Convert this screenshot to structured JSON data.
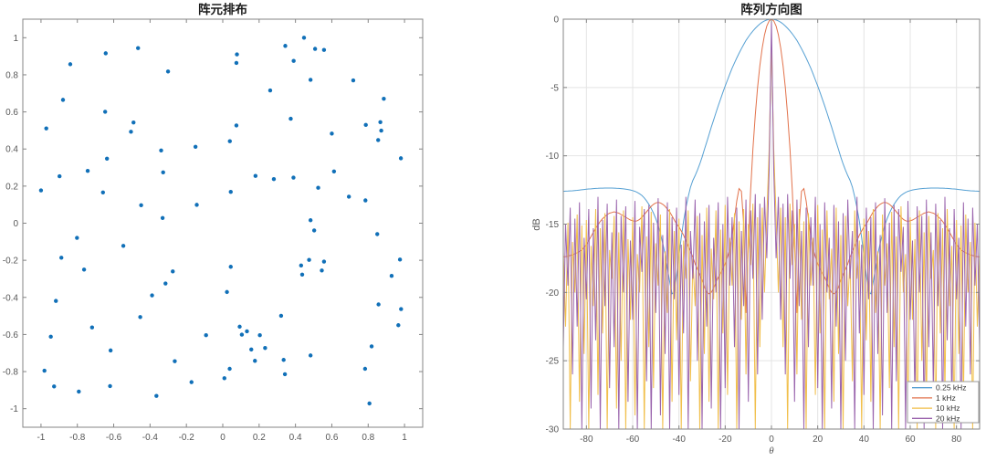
{
  "figure": {
    "background": "#ffffff"
  },
  "styles": {
    "axis_color": "#858585",
    "tick_label_color": "#575757",
    "grid_color": "#e4e4e4",
    "scatter_color": "#1170b8",
    "series_colors": [
      "#56a0d3",
      "#e2724b",
      "#f1bf4b",
      "#9a64ad"
    ]
  },
  "chart_data": [
    {
      "type": "scatter",
      "title": "阵元排布",
      "xlim": [
        -1.1,
        1.1
      ],
      "ylim": [
        -1.1,
        1.1
      ],
      "grid": false,
      "x_tick_values": [
        -1,
        -0.8,
        -0.6,
        -0.4,
        -0.2,
        0,
        0.2,
        0.4,
        0.6,
        0.8,
        1
      ],
      "x_tick_labels": [
        "-1",
        "-0.8",
        "-0.6",
        "-0.4",
        "-0.2",
        "0",
        "0.2",
        "0.4",
        "0.6",
        "0.8",
        "1"
      ],
      "y_tick_values": [
        -1,
        -0.8,
        -0.6,
        -0.4,
        -0.2,
        0,
        0.2,
        0.4,
        0.6,
        0.8,
        1
      ],
      "y_tick_labels": [
        "-1",
        "-0.8",
        "-0.6",
        "-0.4",
        "-0.2",
        "0",
        "0.2",
        "0.4",
        "0.6",
        "0.8",
        "1"
      ],
      "marker_color": "#1170b8",
      "points": [
        [
          0.447,
          1.0
        ],
        [
          0.344,
          0.956
        ],
        [
          0.508,
          0.94
        ],
        [
          0.557,
          0.934
        ],
        [
          0.078,
          0.91
        ],
        [
          -0.466,
          0.944
        ],
        [
          -0.644,
          0.916
        ],
        [
          0.075,
          0.864
        ],
        [
          0.39,
          0.875
        ],
        [
          -0.839,
          0.857
        ],
        [
          -0.301,
          0.818
        ],
        [
          0.483,
          0.773
        ],
        [
          0.718,
          0.77
        ],
        [
          0.261,
          0.716
        ],
        [
          0.886,
          0.671
        ],
        [
          -0.879,
          0.665
        ],
        [
          -0.647,
          0.601
        ],
        [
          0.374,
          0.563
        ],
        [
          -0.491,
          0.543
        ],
        [
          0.867,
          0.545
        ],
        [
          0.787,
          0.53
        ],
        [
          -0.971,
          0.511
        ],
        [
          0.075,
          0.527
        ],
        [
          0.872,
          0.499
        ],
        [
          -0.505,
          0.493
        ],
        [
          0.6,
          0.483
        ],
        [
          0.855,
          0.448
        ],
        [
          0.039,
          0.442
        ],
        [
          -0.15,
          0.412
        ],
        [
          -0.339,
          0.392
        ],
        [
          0.98,
          0.35
        ],
        [
          -0.637,
          0.348
        ],
        [
          -0.743,
          0.282
        ],
        [
          -0.328,
          0.274
        ],
        [
          0.612,
          0.279
        ],
        [
          0.18,
          0.255
        ],
        [
          -0.898,
          0.253
        ],
        [
          0.281,
          0.238
        ],
        [
          0.389,
          0.246
        ],
        [
          -1.0,
          0.177
        ],
        [
          -0.659,
          0.166
        ],
        [
          0.044,
          0.169
        ],
        [
          0.525,
          0.191
        ],
        [
          0.694,
          0.143
        ],
        [
          0.785,
          0.123
        ],
        [
          -0.449,
          0.097
        ],
        [
          -0.143,
          0.099
        ],
        [
          -0.331,
          0.028
        ],
        [
          0.483,
          0.016
        ],
        [
          0.503,
          -0.039
        ],
        [
          0.85,
          -0.059
        ],
        [
          -0.802,
          -0.079
        ],
        [
          -0.547,
          -0.122
        ],
        [
          -0.888,
          -0.186
        ],
        [
          0.975,
          -0.196
        ],
        [
          0.475,
          -0.198
        ],
        [
          0.557,
          -0.207
        ],
        [
          0.044,
          -0.235
        ],
        [
          0.431,
          -0.228
        ],
        [
          -0.763,
          -0.25
        ],
        [
          -0.275,
          -0.26
        ],
        [
          0.545,
          -0.255
        ],
        [
          0.437,
          -0.277
        ],
        [
          0.929,
          -0.284
        ],
        [
          -0.315,
          -0.325
        ],
        [
          0.023,
          -0.371
        ],
        [
          -0.918,
          -0.419
        ],
        [
          -0.389,
          -0.389
        ],
        [
          0.857,
          -0.438
        ],
        [
          0.981,
          -0.463
        ],
        [
          -0.454,
          -0.506
        ],
        [
          0.321,
          -0.499
        ],
        [
          0.966,
          -0.55
        ],
        [
          -0.719,
          -0.562
        ],
        [
          0.093,
          -0.558
        ],
        [
          -0.946,
          -0.612
        ],
        [
          0.105,
          -0.601
        ],
        [
          0.133,
          -0.583
        ],
        [
          0.204,
          -0.604
        ],
        [
          -0.092,
          -0.604
        ],
        [
          0.233,
          -0.673
        ],
        [
          0.819,
          -0.664
        ],
        [
          -0.617,
          -0.686
        ],
        [
          0.157,
          -0.681
        ],
        [
          0.483,
          -0.713
        ],
        [
          0.177,
          -0.742
        ],
        [
          -0.264,
          -0.744
        ],
        [
          0.335,
          -0.737
        ],
        [
          -0.981,
          -0.795
        ],
        [
          0.038,
          -0.785
        ],
        [
          0.342,
          -0.814
        ],
        [
          0.783,
          -0.785
        ],
        [
          -0.928,
          -0.88
        ],
        [
          -0.172,
          -0.857
        ],
        [
          0.009,
          -0.836
        ],
        [
          -0.792,
          -0.908
        ],
        [
          -0.62,
          -0.878
        ],
        [
          -0.365,
          -0.931
        ],
        [
          0.807,
          -0.972
        ]
      ]
    },
    {
      "type": "line",
      "title": "阵列方向图",
      "xlabel": "θ",
      "ylabel": "dB",
      "xlim": [
        -90,
        90
      ],
      "ylim": [
        -30,
        0
      ],
      "grid": true,
      "legend_position": "bottom-right",
      "x_tick_values": [
        -80,
        -60,
        -40,
        -20,
        0,
        20,
        40,
        60,
        80
      ],
      "x_tick_labels": [
        "-80",
        "-60",
        "-40",
        "-20",
        "0",
        "20",
        "40",
        "60",
        "80"
      ],
      "y_tick_values": [
        0,
        -5,
        -10,
        -15,
        -20,
        -25,
        -30
      ],
      "y_tick_labels": [
        "0",
        "-5",
        "-10",
        "-15",
        "-20",
        "-25",
        "-30"
      ],
      "x_step": 1,
      "symmetric": true,
      "series": [
        {
          "name": "0.25 kHz",
          "color": "#56a0d3",
          "y_half": [
            0,
            -0.02,
            -0.06,
            -0.13,
            -0.22,
            -0.35,
            -0.5,
            -0.67,
            -0.86,
            -1.07,
            -1.3,
            -1.56,
            -1.85,
            -2.16,
            -2.5,
            -2.84,
            -3.2,
            -3.59,
            -4,
            -4.44,
            -4.9,
            -5.36,
            -5.84,
            -6.34,
            -6.85,
            -7.37,
            -7.9,
            -8.45,
            -9,
            -9.55,
            -10.1,
            -10.6,
            -11.05,
            -11.45,
            -11.8,
            -12.3,
            -13,
            -13.8,
            -14.8,
            -16,
            -17.3,
            -18.7,
            -20,
            -20.1,
            -19.2,
            -18.2,
            -17.2,
            -16.4,
            -15.7,
            -15.1,
            -14.6,
            -14.2,
            -13.85,
            -13.55,
            -13.3,
            -13.08,
            -12.9,
            -12.78,
            -12.68,
            -12.6,
            -12.55,
            -12.5,
            -12.47,
            -12.44,
            -12.42,
            -12.4,
            -12.39,
            -12.38,
            -12.37,
            -12.36,
            -12.36,
            -12.36,
            -12.36,
            -12.37,
            -12.37,
            -12.38,
            -12.39,
            -12.4,
            -12.42,
            -12.43,
            -12.45,
            -12.47,
            -12.49,
            -12.51,
            -12.53,
            -12.54,
            -12.56,
            -12.57,
            -12.58,
            -12.59,
            -12.6
          ]
        },
        {
          "name": "1 kHz",
          "color": "#e2724b",
          "y_half": [
            0,
            -0.12,
            -0.5,
            -1.15,
            -2.1,
            -3.4,
            -5,
            -7,
            -9.5,
            -12.5,
            -16.5,
            -21.5,
            -15,
            -12.6,
            -12.4,
            -13.3,
            -14.6,
            -15.9,
            -16.8,
            -17.4,
            -17.9,
            -18.3,
            -18.6,
            -18.9,
            -19.3,
            -19.7,
            -20,
            -20.1,
            -20,
            -19.6,
            -19.1,
            -18.7,
            -18.3,
            -17.9,
            -17.4,
            -17,
            -16.6,
            -16.2,
            -15.8,
            -15.5,
            -15.2,
            -15,
            -14.7,
            -14.4,
            -14.1,
            -13.9,
            -13.7,
            -13.55,
            -13.45,
            -13.4,
            -13.45,
            -13.55,
            -13.7,
            -13.9,
            -14.1,
            -14.3,
            -14.5,
            -14.65,
            -14.75,
            -14.8,
            -14.75,
            -14.7,
            -14.6,
            -14.5,
            -14.4,
            -14.3,
            -14.2,
            -14.15,
            -14.1,
            -14.15,
            -14.2,
            -14.3,
            -14.45,
            -14.6,
            -14.8,
            -15.05,
            -15.3,
            -15.6,
            -15.9,
            -16.2,
            -16.5,
            -16.7,
            -16.9,
            -17,
            -17.1,
            -17.18,
            -17.25,
            -17.3,
            -17.35,
            -17.38,
            -17.4
          ]
        },
        {
          "name": "10 kHz",
          "color": "#f1bf4b",
          "y_half": [
            -1.8,
            -9.5,
            -14.5,
            -20,
            -13.8,
            -24,
            -14.5,
            -30,
            -13.5,
            -18,
            -15,
            -26,
            -13.9,
            -22,
            -14.8,
            -30,
            -14.2,
            -19.5,
            -16,
            -27.5,
            -13.6,
            -23,
            -15.4,
            -30,
            -14,
            -20.5,
            -16.8,
            -28,
            -13.8,
            -24.5,
            -15.8,
            -30,
            -14.4,
            -21,
            -17.5,
            -26.5,
            -14,
            -19,
            -16.2,
            -30,
            -14.6,
            -23.5,
            -15.5,
            -28,
            -13.9,
            -21.5,
            -17,
            -30,
            -14.3,
            -19.5,
            -16.4,
            -27,
            -14.1,
            -24,
            -15.9,
            -30,
            -13.7,
            -20,
            -17.2,
            -29,
            -14.5,
            -22,
            -16.1,
            -30,
            -14,
            -25,
            -15.6,
            -28.5,
            -14.4,
            -19,
            -16.9,
            -30,
            -14.2,
            -23,
            -15.3,
            -27.5,
            -13.9,
            -21,
            -16.6,
            -30,
            -14.7,
            -24.5,
            -15.1,
            -28,
            -14.3,
            -20,
            -16.3,
            -30,
            -14.9,
            -22.5,
            -17
          ]
        },
        {
          "name": "20 kHz",
          "color": "#9a64ad",
          "y_half": [
            0,
            -11,
            -17.5,
            -13,
            -22,
            -13.5,
            -26,
            -12.8,
            -19,
            -14,
            -28,
            -13.2,
            -21,
            -15.5,
            -30,
            -13.8,
            -24,
            -14.5,
            -19.5,
            -13,
            -27,
            -15,
            -30,
            -13.4,
            -20,
            -16,
            -28.5,
            -13.6,
            -22.5,
            -14.8,
            -30,
            -14.2,
            -25,
            -13.2,
            -19,
            -15.5,
            -30,
            -13,
            -23,
            -16.5,
            -27.5,
            -13.8,
            -20.5,
            -14.5,
            -30,
            -13.4,
            -24.5,
            -15.8,
            -29,
            -13.1,
            -21.5,
            -14.9,
            -30,
            -13.6,
            -26.5,
            -13.9,
            -18.5,
            -15.2,
            -30,
            -13.3,
            -22,
            -16.2,
            -28,
            -13.7,
            -20,
            -14.4,
            -30,
            -13.2,
            -24,
            -15.6,
            -27,
            -13.5,
            -21,
            -14.7,
            -30,
            -13,
            -23.5,
            -15.3,
            -28.5,
            -13.9,
            -20.5,
            -16,
            -30,
            -13.4,
            -22.5,
            -14.6,
            -26,
            -13.8,
            -19.5,
            -15,
            -24
          ]
        }
      ]
    }
  ]
}
